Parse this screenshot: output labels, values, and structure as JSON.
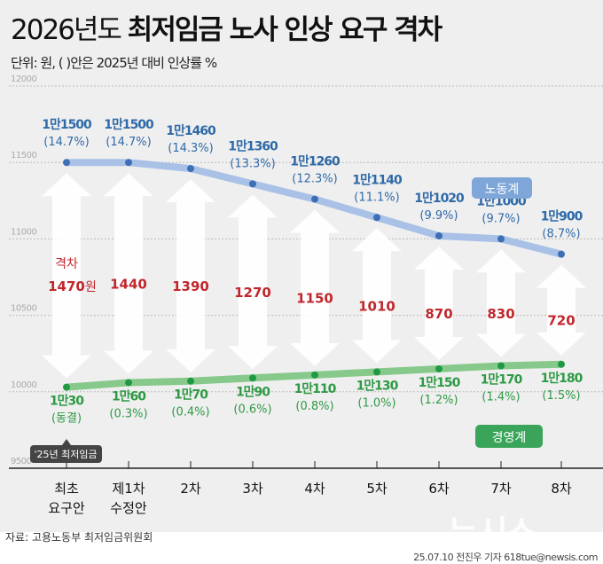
{
  "title_light": "2026년도",
  "title_bold": "최저임금 노사 인상 요구 격차",
  "subtitle": "단위: 원, ( )안은 2025년 대비 인상률 %",
  "source": "자료: 고용노동부 최저임금위원회",
  "credit": "25.07.10 전진우 기자 618tue@newsis.com",
  "logo": "뉴시스",
  "chart_data": {
    "type": "line",
    "categories": [
      [
        "최초",
        "요구안"
      ],
      [
        "제1차",
        "수정안"
      ],
      [
        "2차"
      ],
      [
        "3차"
      ],
      [
        "4차"
      ],
      [
        "5차"
      ],
      [
        "6차"
      ],
      [
        "7차"
      ],
      [
        "8차"
      ]
    ],
    "ylim": [
      9500,
      12000
    ],
    "yticks": [
      9500,
      10000,
      10500,
      11000,
      11500,
      12000
    ],
    "series": [
      {
        "name": "노동계",
        "color": "#a9c1e6",
        "label_color": "#2f6aa8",
        "values": [
          11500,
          11500,
          11460,
          11360,
          11260,
          11140,
          11020,
          11000,
          10900
        ],
        "labels": [
          "1만1500",
          "1만1500",
          "1만1460",
          "1만1360",
          "1만1260",
          "1만1140",
          "1만1020",
          "1만1000",
          "1만900"
        ],
        "rates": [
          "(14.7%)",
          "(14.7%)",
          "(14.3%)",
          "(13.3%)",
          "(12.3%)",
          "(11.1%)",
          "(9.9%)",
          "(9.7%)",
          "(8.7%)"
        ]
      },
      {
        "name": "경영계",
        "color": "#86c98a",
        "label_color": "#2e9a45",
        "values": [
          10030,
          10060,
          10070,
          10090,
          10110,
          10130,
          10150,
          10170,
          10180
        ],
        "labels": [
          "1만30",
          "1만60",
          "1만70",
          "1만90",
          "1만110",
          "1만130",
          "1만150",
          "1만170",
          "1만180"
        ],
        "rates": [
          "(동결)",
          "(0.3%)",
          "(0.4%)",
          "(0.6%)",
          "(0.8%)",
          "(1.0%)",
          "(1.2%)",
          "(1.4%)",
          "(1.5%)"
        ]
      }
    ],
    "gap": {
      "title": "격차",
      "unit": "원",
      "values": [
        1470,
        1440,
        1390,
        1270,
        1150,
        1010,
        870,
        830,
        720
      ],
      "color": "#c0272d"
    },
    "annotation": "'25년 최저임금"
  }
}
